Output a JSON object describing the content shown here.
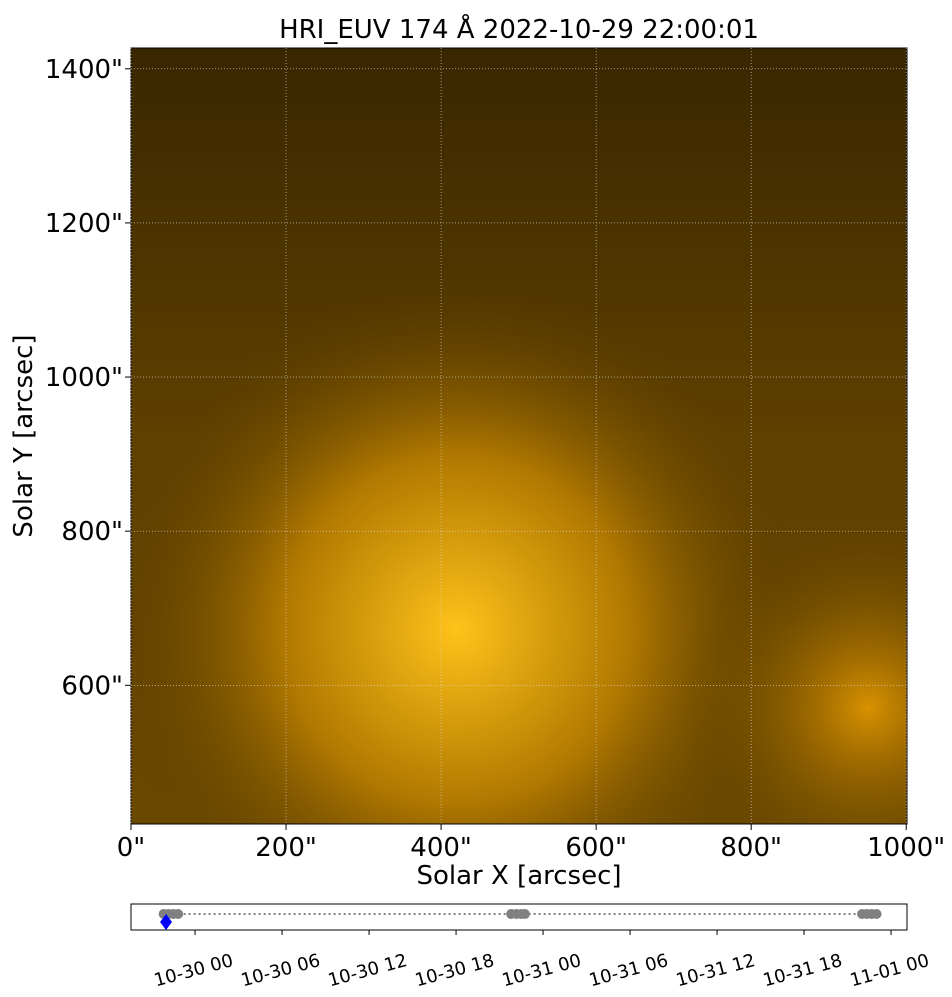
{
  "chart_data": [
    {
      "type": "image",
      "title": "HRI_EUV 174 Å 2022-10-29 22:00:01",
      "xlabel": "Solar X [arcsec]",
      "ylabel": "Solar Y [arcsec]",
      "xlim": [
        0,
        1001
      ],
      "ylim": [
        420,
        1427
      ],
      "xticks": [
        {
          "value": 0,
          "label": "0\""
        },
        {
          "value": 200,
          "label": "200\""
        },
        {
          "value": 400,
          "label": "400\""
        },
        {
          "value": 600,
          "label": "600\""
        },
        {
          "value": 800,
          "label": "800\""
        },
        {
          "value": 1000,
          "label": "1000\""
        }
      ],
      "yticks": [
        {
          "value": 600,
          "label": "600\""
        },
        {
          "value": 800,
          "label": "800\""
        },
        {
          "value": 1000,
          "label": "1000\""
        },
        {
          "value": 1200,
          "label": "1200\""
        },
        {
          "value": 1400,
          "label": "1400\""
        }
      ],
      "grid": true
    },
    {
      "type": "timeline",
      "xlim": [
        "10-29 19:35",
        "11-01 01:06"
      ],
      "xticks": [
        "10-30 00",
        "10-30 06",
        "10-30 12",
        "10-30 18",
        "10-31 00",
        "10-31 06",
        "10-31 12",
        "10-31 18",
        "11-01 00"
      ],
      "x": [
        "10-29 21:50",
        "10-29 22:10",
        "10-29 22:30",
        "10-29 22:50",
        "10-30 21:48",
        "10-30 22:10",
        "10-30 22:30",
        "10-30 22:45",
        "10-31 22:00",
        "10-31 22:20",
        "10-31 22:40",
        "10-31 23:00"
      ],
      "color": "#808080",
      "current": "10-29 22:00",
      "current_color": "#0000ff"
    }
  ]
}
